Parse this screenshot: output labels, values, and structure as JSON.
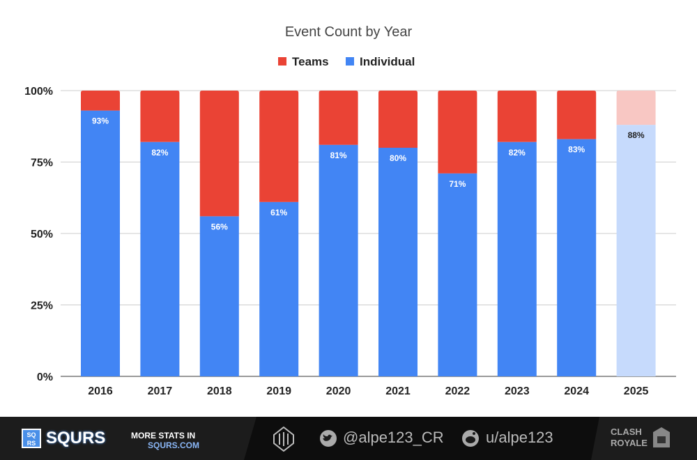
{
  "chart_data": {
    "type": "bar",
    "stacked": true,
    "normalized": true,
    "title": "Event Count by Year",
    "legend": {
      "position": "top",
      "entries": [
        {
          "name": "Teams",
          "color": "#ea4335"
        },
        {
          "name": "Individual",
          "color": "#4285f4"
        }
      ]
    },
    "categories": [
      "2016",
      "2017",
      "2018",
      "2019",
      "2020",
      "2021",
      "2022",
      "2023",
      "2024",
      "2025"
    ],
    "series": [
      {
        "name": "Individual",
        "color": "#4285f4",
        "values": [
          93,
          82,
          56,
          61,
          81,
          80,
          71,
          82,
          83,
          88
        ]
      },
      {
        "name": "Teams",
        "color": "#ea4335",
        "values": [
          7,
          18,
          44,
          39,
          19,
          20,
          29,
          18,
          17,
          12
        ]
      }
    ],
    "data_labels": [
      "93%",
      "82%",
      "56%",
      "61%",
      "81%",
      "80%",
      "71%",
      "82%",
      "83%",
      "88%"
    ],
    "highlight_faded": "2025",
    "faded_colors": {
      "Individual": "#c6dafc",
      "Teams": "#f8c7c3"
    },
    "ylim": [
      0,
      100
    ],
    "yticks": [
      "0%",
      "25%",
      "50%",
      "75%",
      "100%"
    ],
    "grid": true
  },
  "footer": {
    "brand": "SQURS",
    "brand_box": "SQ RS",
    "more_stats": "MORE STATS IN",
    "site": "SQURS.COM",
    "twitter": "@alpe123_CR",
    "reddit": "u/alpe123",
    "game_logo": "CLASH ROYALE"
  }
}
